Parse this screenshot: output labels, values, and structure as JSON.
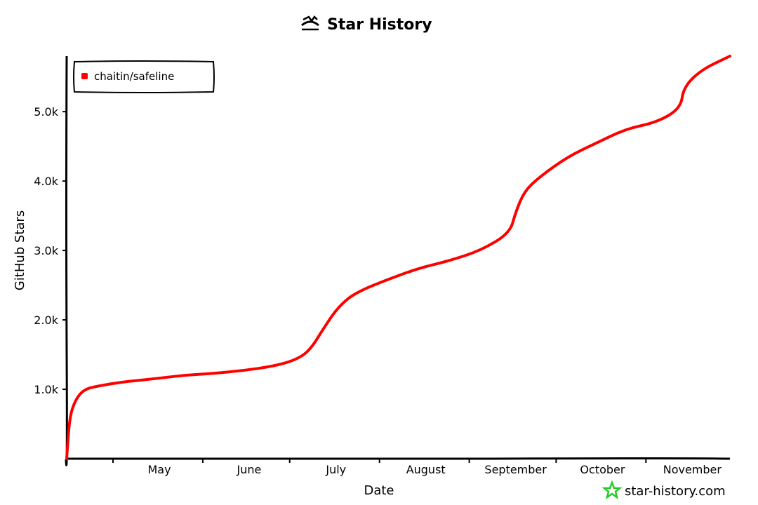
{
  "chart_data": {
    "type": "line",
    "title": "Star History",
    "xlabel": "Date",
    "ylabel": "GitHub Stars",
    "x_tick_labels": [
      "May",
      "June",
      "July",
      "August",
      "September",
      "October",
      "November"
    ],
    "y_tick_labels": [
      "1.0k",
      "2.0k",
      "3.0k",
      "4.0k",
      "5.0k"
    ],
    "y_ticks": [
      1000,
      2000,
      3000,
      4000,
      5000
    ],
    "ylim": [
      0,
      5800
    ],
    "grid": false,
    "legend_position": "top-left",
    "series": [
      {
        "name": "chaitin/safeline",
        "color": "#ff0000",
        "points": [
          [
            "2023-04-15",
            0
          ],
          [
            "2023-04-16",
            600
          ],
          [
            "2023-04-18",
            850
          ],
          [
            "2023-04-21",
            1000
          ],
          [
            "2023-04-26",
            1050
          ],
          [
            "2023-05-05",
            1110
          ],
          [
            "2023-05-15",
            1150
          ],
          [
            "2023-05-25",
            1200
          ],
          [
            "2023-06-05",
            1230
          ],
          [
            "2023-06-15",
            1270
          ],
          [
            "2023-06-25",
            1330
          ],
          [
            "2023-07-03",
            1420
          ],
          [
            "2023-07-08",
            1560
          ],
          [
            "2023-07-13",
            1900
          ],
          [
            "2023-07-18",
            2200
          ],
          [
            "2023-07-24",
            2400
          ],
          [
            "2023-08-05",
            2600
          ],
          [
            "2023-08-15",
            2750
          ],
          [
            "2023-08-25",
            2850
          ],
          [
            "2023-09-05",
            3000
          ],
          [
            "2023-09-15",
            3250
          ],
          [
            "2023-09-17",
            3550
          ],
          [
            "2023-09-20",
            3850
          ],
          [
            "2023-09-25",
            4050
          ],
          [
            "2023-10-05",
            4350
          ],
          [
            "2023-10-15",
            4550
          ],
          [
            "2023-10-25",
            4750
          ],
          [
            "2023-11-05",
            4850
          ],
          [
            "2023-11-13",
            5050
          ],
          [
            "2023-11-14",
            5350
          ],
          [
            "2023-11-20",
            5600
          ],
          [
            "2023-11-30",
            5800
          ]
        ]
      }
    ]
  },
  "watermark": {
    "text": "star-history.com",
    "icon": "star-icon",
    "color": "#22cc22"
  },
  "title_icon": "star-history-logo-icon"
}
